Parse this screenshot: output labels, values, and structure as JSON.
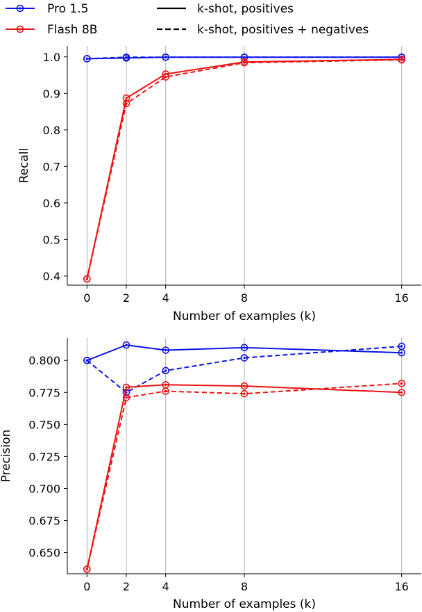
{
  "legend": {
    "entries": [
      {
        "label": "Pro 1.5",
        "color": "#0a14e6",
        "style": "solid-marker"
      },
      {
        "label": "Flash 8B",
        "color": "#ee1111",
        "style": "solid-marker"
      },
      {
        "label": "k-shot, positives",
        "color": "#000000",
        "style": "solid"
      },
      {
        "label": "k-shot, positives + negatives",
        "color": "#000000",
        "style": "dashed"
      }
    ]
  },
  "chart_data": [
    {
      "type": "line",
      "xlabel": "Number of examples (k)",
      "ylabel": "Recall",
      "xticks": [
        0,
        2,
        4,
        8,
        16
      ],
      "yticks": [
        0.4,
        0.5,
        0.6,
        0.7,
        0.8,
        0.9,
        1.0
      ],
      "ytick_labels": [
        "0.4",
        "0.5",
        "0.6",
        "0.7",
        "0.8",
        "0.9",
        "1.0"
      ],
      "xlim": [
        -1,
        17
      ],
      "ylim": [
        0.375,
        1.03
      ],
      "grid": "x",
      "x": [
        0,
        2,
        4,
        8,
        16
      ],
      "series": [
        {
          "name": "Pro 1.5",
          "condition": "k-shot, positives",
          "color": "#0a14e6",
          "dash": "solid",
          "values": [
            0.995,
            0.997,
            0.999,
            0.999,
            0.999
          ]
        },
        {
          "name": "Pro 1.5",
          "condition": "k-shot, positives + negatives",
          "color": "#0a14e6",
          "dash": "dashed",
          "values": [
            0.995,
            0.999,
            0.999,
            0.999,
            0.999
          ]
        },
        {
          "name": "Flash 8B",
          "condition": "k-shot, positives",
          "color": "#ee1111",
          "dash": "solid",
          "values": [
            0.392,
            0.887,
            0.953,
            0.986,
            0.993
          ]
        },
        {
          "name": "Flash 8B",
          "condition": "k-shot, positives + negatives",
          "color": "#ee1111",
          "dash": "dashed",
          "values": [
            0.392,
            0.872,
            0.945,
            0.984,
            0.992
          ]
        }
      ]
    },
    {
      "type": "line",
      "xlabel": "Number of examples (k)",
      "ylabel": "Precision",
      "xticks": [
        0,
        2,
        4,
        8,
        16
      ],
      "yticks": [
        0.65,
        0.675,
        0.7,
        0.725,
        0.75,
        0.775,
        0.8
      ],
      "ytick_labels": [
        "0.650",
        "0.675",
        "0.700",
        "0.725",
        "0.750",
        "0.775",
        "0.800"
      ],
      "xlim": [
        -1,
        17
      ],
      "ylim": [
        0.6335,
        0.8175
      ],
      "grid": "x",
      "x": [
        0,
        2,
        4,
        8,
        16
      ],
      "series": [
        {
          "name": "Pro 1.5",
          "condition": "k-shot, positives",
          "color": "#0a14e6",
          "dash": "solid",
          "values": [
            0.8,
            0.812,
            0.808,
            0.81,
            0.806
          ]
        },
        {
          "name": "Pro 1.5",
          "condition": "k-shot, positives + negatives",
          "color": "#0a14e6",
          "dash": "dashed",
          "values": [
            0.8,
            0.775,
            0.792,
            0.802,
            0.811
          ]
        },
        {
          "name": "Flash 8B",
          "condition": "k-shot, positives",
          "color": "#ee1111",
          "dash": "solid",
          "values": [
            0.637,
            0.779,
            0.781,
            0.78,
            0.775
          ]
        },
        {
          "name": "Flash 8B",
          "condition": "k-shot, positives + negatives",
          "color": "#ee1111",
          "dash": "dashed",
          "values": [
            0.637,
            0.771,
            0.776,
            0.774,
            0.782
          ]
        }
      ]
    }
  ]
}
